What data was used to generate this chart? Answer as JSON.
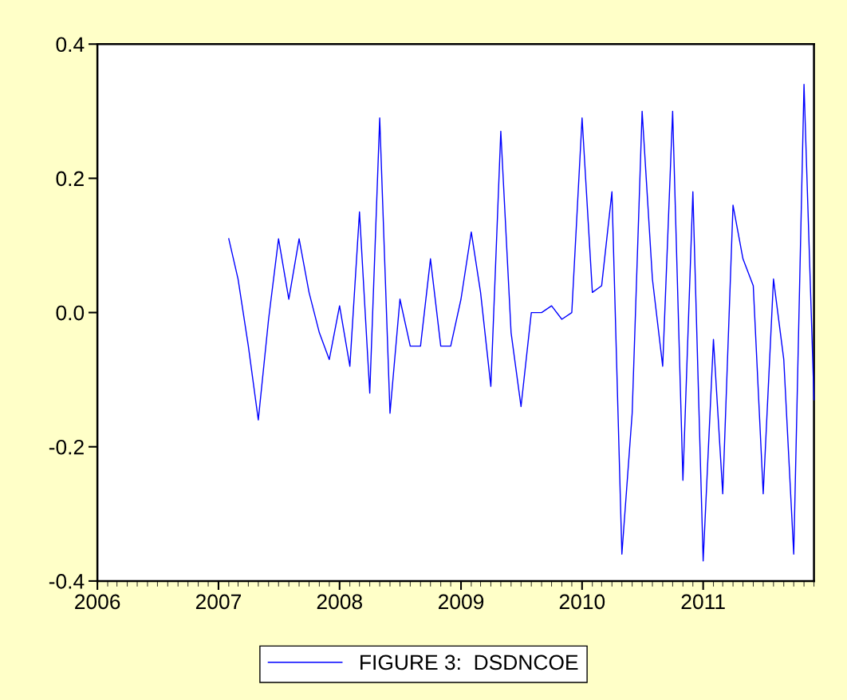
{
  "chart_data": {
    "type": "line",
    "x": [
      "2007-02",
      "2007-03",
      "2007-04",
      "2007-05",
      "2007-06",
      "2007-07",
      "2007-08",
      "2007-09",
      "2007-10",
      "2007-11",
      "2007-12",
      "2008-01",
      "2008-02",
      "2008-03",
      "2008-04",
      "2008-05",
      "2008-06",
      "2008-07",
      "2008-08",
      "2008-09",
      "2008-10",
      "2008-11",
      "2008-12",
      "2009-01",
      "2009-02",
      "2009-03",
      "2009-04",
      "2009-05",
      "2009-06",
      "2009-07",
      "2009-08",
      "2009-09",
      "2009-10",
      "2009-11",
      "2009-12",
      "2010-01",
      "2010-02",
      "2010-03",
      "2010-04",
      "2010-05",
      "2010-06",
      "2010-07",
      "2010-08",
      "2010-09",
      "2010-10",
      "2010-11",
      "2010-12",
      "2011-01",
      "2011-02",
      "2011-03",
      "2011-04",
      "2011-05",
      "2011-06",
      "2011-07",
      "2011-08",
      "2011-09",
      "2011-10",
      "2011-11",
      "2011-12"
    ],
    "series": [
      {
        "name": "FIGURE 3:  DSDNCOE",
        "color": "#0000ff",
        "values": [
          0.11,
          0.05,
          -0.05,
          -0.16,
          -0.01,
          0.11,
          0.02,
          0.11,
          0.03,
          -0.03,
          -0.07,
          0.01,
          -0.08,
          0.15,
          -0.12,
          0.29,
          -0.15,
          0.02,
          -0.05,
          -0.05,
          0.08,
          -0.05,
          -0.05,
          0.02,
          0.12,
          0.03,
          -0.11,
          0.27,
          -0.03,
          -0.14,
          0.0,
          0.0,
          0.01,
          -0.01,
          0.0,
          0.29,
          0.03,
          0.04,
          0.18,
          -0.36,
          -0.15,
          0.3,
          0.05,
          -0.08,
          0.3,
          -0.25,
          0.18,
          -0.37,
          -0.04,
          -0.27,
          0.16,
          0.08,
          0.04,
          -0.27,
          0.05,
          -0.07,
          -0.36,
          0.34,
          -0.13
        ]
      }
    ],
    "xlim": [
      "2006-01",
      "2011-12"
    ],
    "xticks": [
      {
        "value": "2006-01",
        "label": "2006"
      },
      {
        "value": "2007-01",
        "label": "2007"
      },
      {
        "value": "2008-01",
        "label": "2008"
      },
      {
        "value": "2009-01",
        "label": "2009"
      },
      {
        "value": "2010-01",
        "label": "2010"
      },
      {
        "value": "2011-01",
        "label": "2011"
      }
    ],
    "ylim": [
      -0.4,
      0.4
    ],
    "yticks": [
      {
        "value": -0.4,
        "label": "-0.4"
      },
      {
        "value": -0.2,
        "label": "-0.2"
      },
      {
        "value": 0,
        "label": "0.0"
      },
      {
        "value": 0.2,
        "label": "0.2"
      },
      {
        "value": 0.4,
        "label": "0.4"
      }
    ],
    "grid": false,
    "legend": "bottom",
    "marker": "none",
    "line_style": "solid"
  }
}
